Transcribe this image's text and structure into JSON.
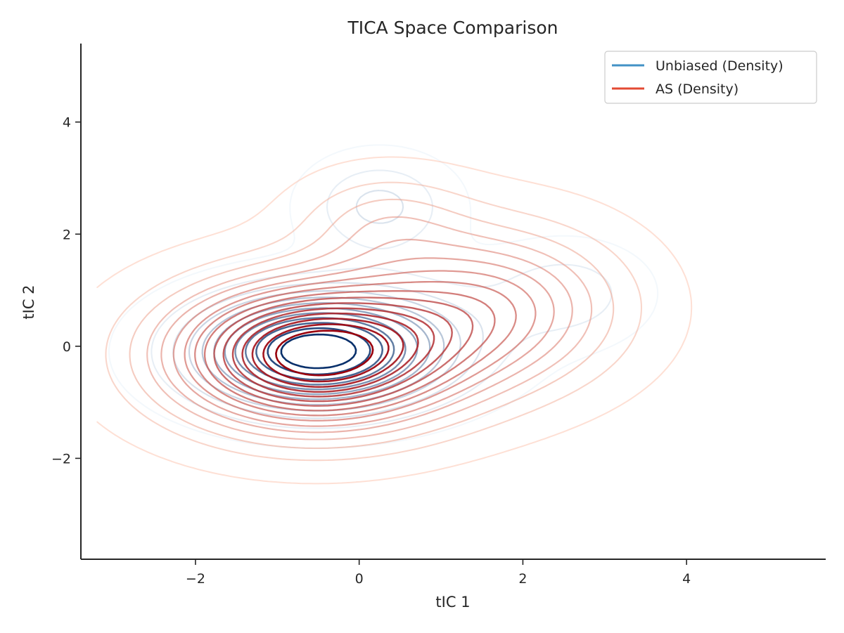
{
  "chart_data": {
    "type": "contour",
    "title": "TICA Space Comparison",
    "xlabel": "tIC 1",
    "ylabel": "tIC 2",
    "xlim": [
      -3.4,
      5.7
    ],
    "ylim": [
      -3.8,
      5.4
    ],
    "xticks": [
      -2,
      0,
      2,
      4
    ],
    "yticks": [
      -2,
      0,
      2,
      4
    ],
    "xtick_labels": [
      "−2",
      "0",
      "2",
      "4"
    ],
    "ytick_labels": [
      "−2",
      "0",
      "2",
      "4"
    ],
    "grid": false,
    "legend_position": "top-right",
    "series": [
      {
        "name": "Unbiased (Density)",
        "color": "#4292c6",
        "colormap": "Blues",
        "color_low": "#deebf7",
        "color_high": "#08306b",
        "modes": [
          {
            "cx": -0.55,
            "cy": -0.1,
            "sx": 0.95,
            "sy": 0.65,
            "w": 1.0
          },
          {
            "cx": 0.25,
            "cy": 2.5,
            "sx": 0.55,
            "sy": 0.55,
            "w": 0.22
          },
          {
            "cx": 2.55,
            "cy": 0.95,
            "sx": 0.6,
            "sy": 0.55,
            "w": 0.16
          },
          {
            "cx": 0.9,
            "cy": 0.3,
            "sx": 0.9,
            "sy": 0.75,
            "w": 0.12
          }
        ]
      },
      {
        "name": "AS (Density)",
        "color": "#e34a33",
        "colormap": "Reds",
        "color_low": "#fcbba1",
        "color_high": "#99000d",
        "modes": [
          {
            "cx": -0.55,
            "cy": -0.15,
            "sx": 1.15,
            "sy": 0.85,
            "w": 1.0
          },
          {
            "cx": 1.6,
            "cy": 0.7,
            "sx": 1.05,
            "sy": 0.95,
            "w": 0.4
          },
          {
            "cx": 0.3,
            "cy": 2.2,
            "sx": 0.7,
            "sy": 0.6,
            "w": 0.15
          }
        ]
      }
    ]
  }
}
